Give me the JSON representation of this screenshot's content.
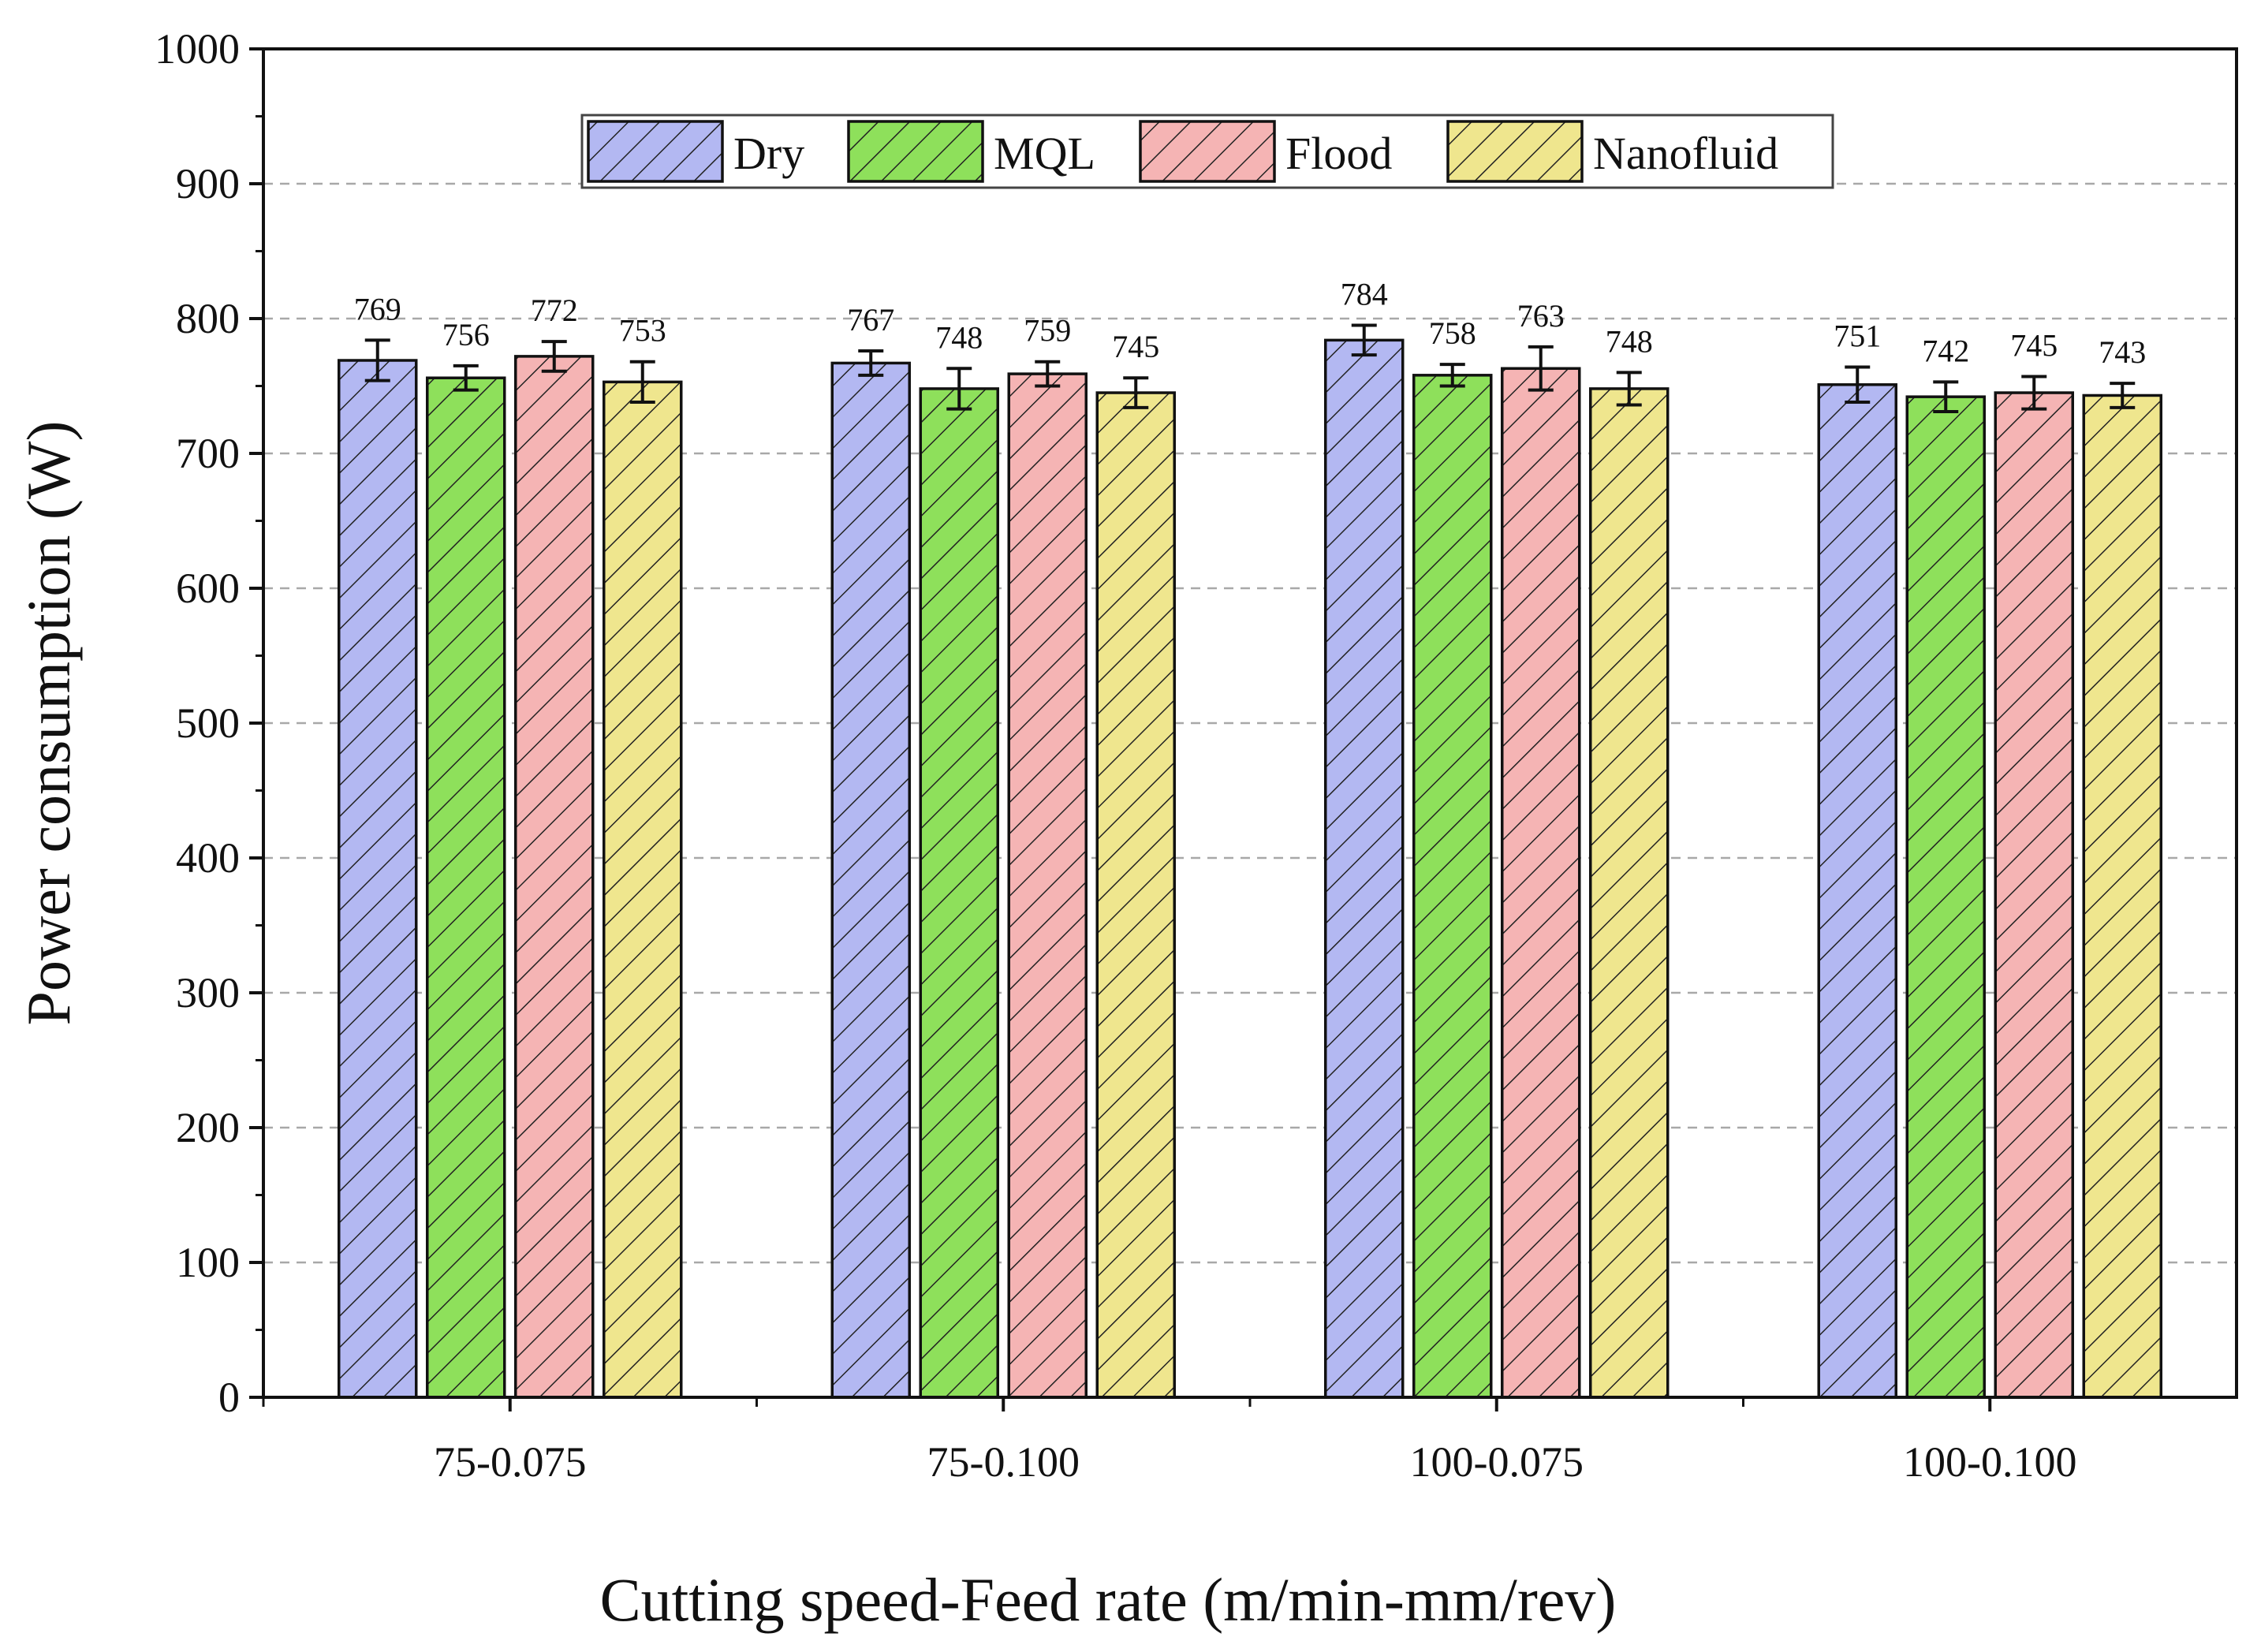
{
  "chart_data": {
    "type": "bar",
    "title": "",
    "xlabel": "Cutting speed-Feed rate (m/min-mm/rev)",
    "ylabel": "Power consumption (W)",
    "ylim": [
      0,
      1000
    ],
    "yticks": [
      "0",
      "100",
      "200",
      "300",
      "400",
      "500",
      "600",
      "700",
      "800",
      "900",
      "1000"
    ],
    "categories": [
      "75-0.075",
      "75-0.100",
      "100-0.075",
      "100-0.100"
    ],
    "grid": "horizontal dashed",
    "legend_position": "top-center",
    "series": [
      {
        "name": "Dry",
        "color": "#b3b8f2",
        "values": [
          769,
          767,
          784,
          751
        ],
        "errors": [
          15,
          9,
          11,
          13
        ],
        "labels": [
          "769",
          "767",
          "784",
          "751"
        ]
      },
      {
        "name": "MQL",
        "color": "#8ee05b",
        "values": [
          756,
          748,
          758,
          742
        ],
        "errors": [
          9,
          15,
          8,
          11
        ],
        "labels": [
          "756",
          "748",
          "758",
          "742"
        ]
      },
      {
        "name": "Flood",
        "color": "#f5b4b4",
        "values": [
          772,
          759,
          763,
          745
        ],
        "errors": [
          11,
          9,
          16,
          12
        ],
        "labels": [
          "772",
          "759",
          "763",
          "745"
        ]
      },
      {
        "name": "Nanofluid",
        "color": "#efe68e",
        "values": [
          753,
          745,
          748,
          743
        ],
        "errors": [
          15,
          11,
          12,
          9
        ],
        "labels": [
          "753",
          "745",
          "748",
          "743"
        ]
      }
    ]
  }
}
